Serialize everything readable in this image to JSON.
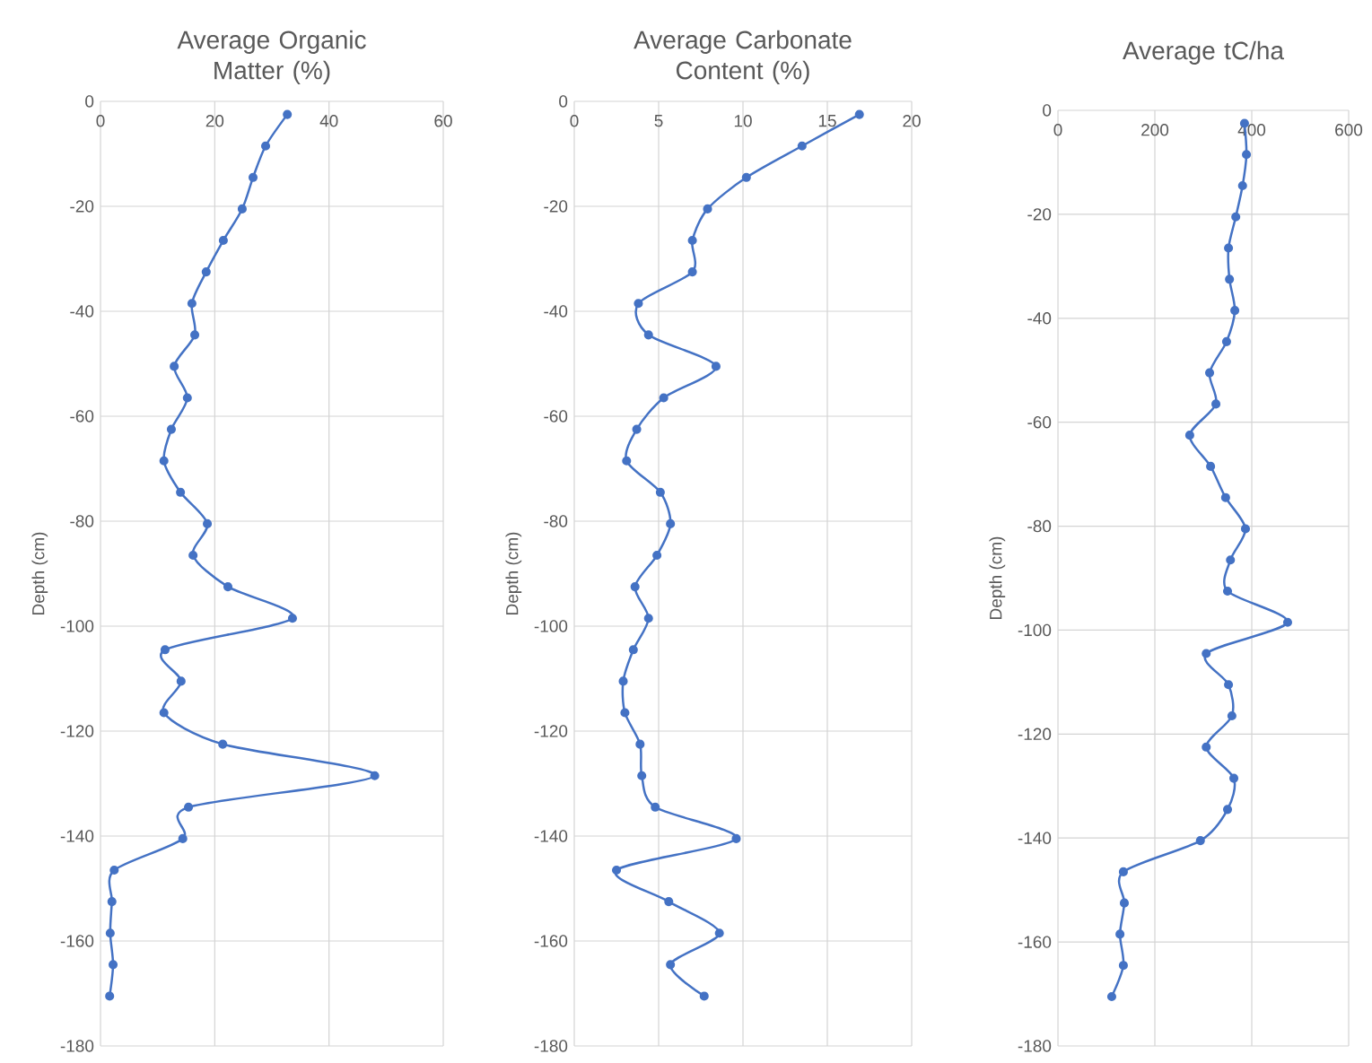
{
  "chart_data": [
    {
      "type": "line",
      "title": "Average Organic Matter (%)",
      "ylabel": "Depth (cm)",
      "xlim": [
        0,
        60
      ],
      "xticks": [
        0,
        20,
        40,
        60
      ],
      "ylim": [
        -180,
        0
      ],
      "yticks": [
        -180,
        -160,
        -140,
        -120,
        -100,
        -80,
        -60,
        -40,
        -20,
        0
      ],
      "grid": true,
      "marker": "circle",
      "series": [
        {
          "color": "#4472c4",
          "x": [
            32.7,
            28.9,
            26.7,
            24.8,
            21.5,
            18.5,
            16.0,
            16.5,
            12.9,
            15.2,
            12.4,
            11.1,
            14.0,
            18.7,
            16.2,
            22.3,
            33.6,
            11.3,
            14.1,
            11.1,
            21.4,
            48.0,
            15.4,
            14.4,
            2.4,
            2.0,
            1.7,
            2.2,
            1.6
          ],
          "values": [
            -2.5,
            -8.5,
            -14.5,
            -20.5,
            -26.5,
            -32.5,
            -38.5,
            -44.5,
            -50.5,
            -56.5,
            -62.5,
            -68.5,
            -74.5,
            -80.5,
            -86.5,
            -92.5,
            -98.5,
            -104.5,
            -110.5,
            -116.5,
            -122.5,
            -128.5,
            -134.5,
            -140.5,
            -146.5,
            -152.5,
            -158.5,
            -164.5,
            -170.5
          ]
        }
      ]
    },
    {
      "type": "line",
      "title": "Average Carbonate Content (%)",
      "ylabel": "Depth (cm)",
      "xlim": [
        0,
        20
      ],
      "xticks": [
        0,
        5,
        10,
        15,
        20
      ],
      "ylim": [
        -180,
        0
      ],
      "yticks": [
        -180,
        -160,
        -140,
        -120,
        -100,
        -80,
        -60,
        -40,
        -20,
        0
      ],
      "grid": true,
      "marker": "circle",
      "series": [
        {
          "color": "#4472c4",
          "x": [
            16.9,
            13.5,
            10.2,
            7.9,
            7.0,
            7.0,
            3.8,
            4.4,
            8.4,
            5.3,
            3.7,
            3.1,
            5.1,
            5.7,
            4.9,
            3.6,
            4.4,
            3.5,
            2.9,
            3.0,
            3.9,
            4.0,
            4.8,
            9.6,
            2.5,
            5.6,
            8.6,
            5.7,
            7.7
          ],
          "values": [
            -2.5,
            -8.5,
            -14.5,
            -20.5,
            -26.5,
            -32.5,
            -38.5,
            -44.5,
            -50.5,
            -56.5,
            -62.5,
            -68.5,
            -74.5,
            -80.5,
            -86.5,
            -92.5,
            -98.5,
            -104.5,
            -110.5,
            -116.5,
            -122.5,
            -128.5,
            -134.5,
            -140.5,
            -146.5,
            -152.5,
            -158.5,
            -164.5,
            -170.5
          ]
        }
      ]
    },
    {
      "type": "line",
      "title": "Average tC/ha",
      "ylabel": "Depth (cm)",
      "xlim": [
        0,
        600
      ],
      "xticks": [
        0,
        200,
        400,
        600
      ],
      "ylim": [
        -180,
        0
      ],
      "yticks": [
        -180,
        -160,
        -140,
        -120,
        -100,
        -80,
        -60,
        -40,
        -20,
        0
      ],
      "grid": true,
      "marker": "circle",
      "series": [
        {
          "color": "#4472c4",
          "x": [
            385,
            389,
            381,
            367,
            352,
            354,
            365,
            348,
            313,
            326,
            272,
            315,
            346,
            387,
            356,
            350,
            474,
            306,
            352,
            359,
            306,
            363,
            350,
            294,
            135,
            137,
            128,
            135,
            111
          ],
          "values": [
            -2.5,
            -8.5,
            -14.5,
            -20.5,
            -26.5,
            -32.5,
            -38.5,
            -44.5,
            -50.5,
            -56.5,
            -62.5,
            -68.5,
            -74.5,
            -80.5,
            -86.5,
            -92.5,
            -98.5,
            -104.5,
            -110.5,
            -116.5,
            -122.5,
            -128.5,
            -134.5,
            -140.5,
            -146.5,
            -152.5,
            -158.5,
            -164.5,
            -170.5
          ]
        }
      ]
    }
  ]
}
